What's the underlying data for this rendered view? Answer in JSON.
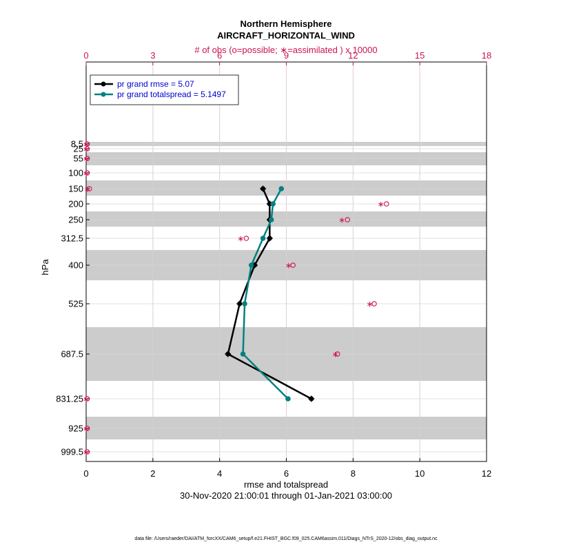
{
  "title": "Northern Hemisphere",
  "subtitle": "AIRCRAFT_HORIZONTAL_WIND",
  "top_axis_label": "# of obs (o=possible; ∗=assimilated ) x 10000",
  "xlabel": "rmse and totalspread",
  "ylabel": "hPa",
  "date_range": "30-Nov-2020 21:00:01 through 01-Jan-2021 03:00:00",
  "footnote": "data file: /Users/raeder/DAI/ATM_forcXX/CAM6_setup/f.e21.FHIST_BGC.f09_025.CAM6assim.011/Diags_NTrS_2020-12/obs_diag_output.nc",
  "colors": {
    "rmse": "#000000",
    "spread": "#008080",
    "obs": "#cc1155",
    "shade": "#cccccc",
    "grid": "#d9d9d9",
    "top_grid": "#dba3b8"
  },
  "chart_data": {
    "type": "line",
    "xlim": [
      0,
      12
    ],
    "x_ticks": [
      "0",
      "2",
      "4",
      "6",
      "8",
      "10",
      "12"
    ],
    "top_xlim": [
      0,
      18
    ],
    "top_ticks": [
      "0",
      "3",
      "6",
      "9",
      "12",
      "15",
      "18"
    ],
    "levels": [
      "8.5",
      "25",
      "55",
      "100",
      "150",
      "200",
      "250",
      "312.5",
      "400",
      "525",
      "687.5",
      "831.25",
      "925",
      "999.5"
    ],
    "grid": true,
    "legend_position": "top-left",
    "series": [
      {
        "name": "pr grand rmse = 5.07",
        "key": "rmse",
        "points": [
          {
            "level": "150",
            "value": 5.3
          },
          {
            "level": "200",
            "value": 5.5
          },
          {
            "level": "250",
            "value": 5.5
          },
          {
            "level": "312.5",
            "value": 5.5
          },
          {
            "level": "400",
            "value": 5.05
          },
          {
            "level": "525",
            "value": 4.6
          },
          {
            "level": "687.5",
            "value": 4.25
          },
          {
            "level": "831.25",
            "value": 6.75
          }
        ]
      },
      {
        "name": "pr grand totalspread = 5.1497",
        "key": "spread",
        "points": [
          {
            "level": "150",
            "value": 5.85
          },
          {
            "level": "200",
            "value": 5.6
          },
          {
            "level": "250",
            "value": 5.55
          },
          {
            "level": "312.5",
            "value": 5.3
          },
          {
            "level": "400",
            "value": 4.95
          },
          {
            "level": "525",
            "value": 4.75
          },
          {
            "level": "687.5",
            "value": 4.7
          },
          {
            "level": "831.25",
            "value": 6.05
          }
        ]
      }
    ],
    "obs_counts": [
      {
        "level": "8.5",
        "possible": 0.05,
        "assimilated": 0.0
      },
      {
        "level": "25",
        "possible": 0.05,
        "assimilated": 0.0
      },
      {
        "level": "55",
        "possible": 0.05,
        "assimilated": 0.0
      },
      {
        "level": "100",
        "possible": 0.05,
        "assimilated": 0.0
      },
      {
        "level": "150",
        "possible": 0.15,
        "assimilated": 0.05
      },
      {
        "level": "200",
        "possible": 13.5,
        "assimilated": 13.25
      },
      {
        "level": "250",
        "possible": 11.75,
        "assimilated": 11.5
      },
      {
        "level": "312.5",
        "possible": 7.2,
        "assimilated": 6.95
      },
      {
        "level": "400",
        "possible": 9.3,
        "assimilated": 9.1
      },
      {
        "level": "525",
        "possible": 12.95,
        "assimilated": 12.75
      },
      {
        "level": "687.5",
        "possible": 11.3,
        "assimilated": 11.2
      },
      {
        "level": "831.25",
        "possible": 0.05,
        "assimilated": 0.0
      },
      {
        "level": "925",
        "possible": 0.05,
        "assimilated": 0.0
      },
      {
        "level": "999.5",
        "possible": 0.05,
        "assimilated": 0.0
      }
    ]
  }
}
